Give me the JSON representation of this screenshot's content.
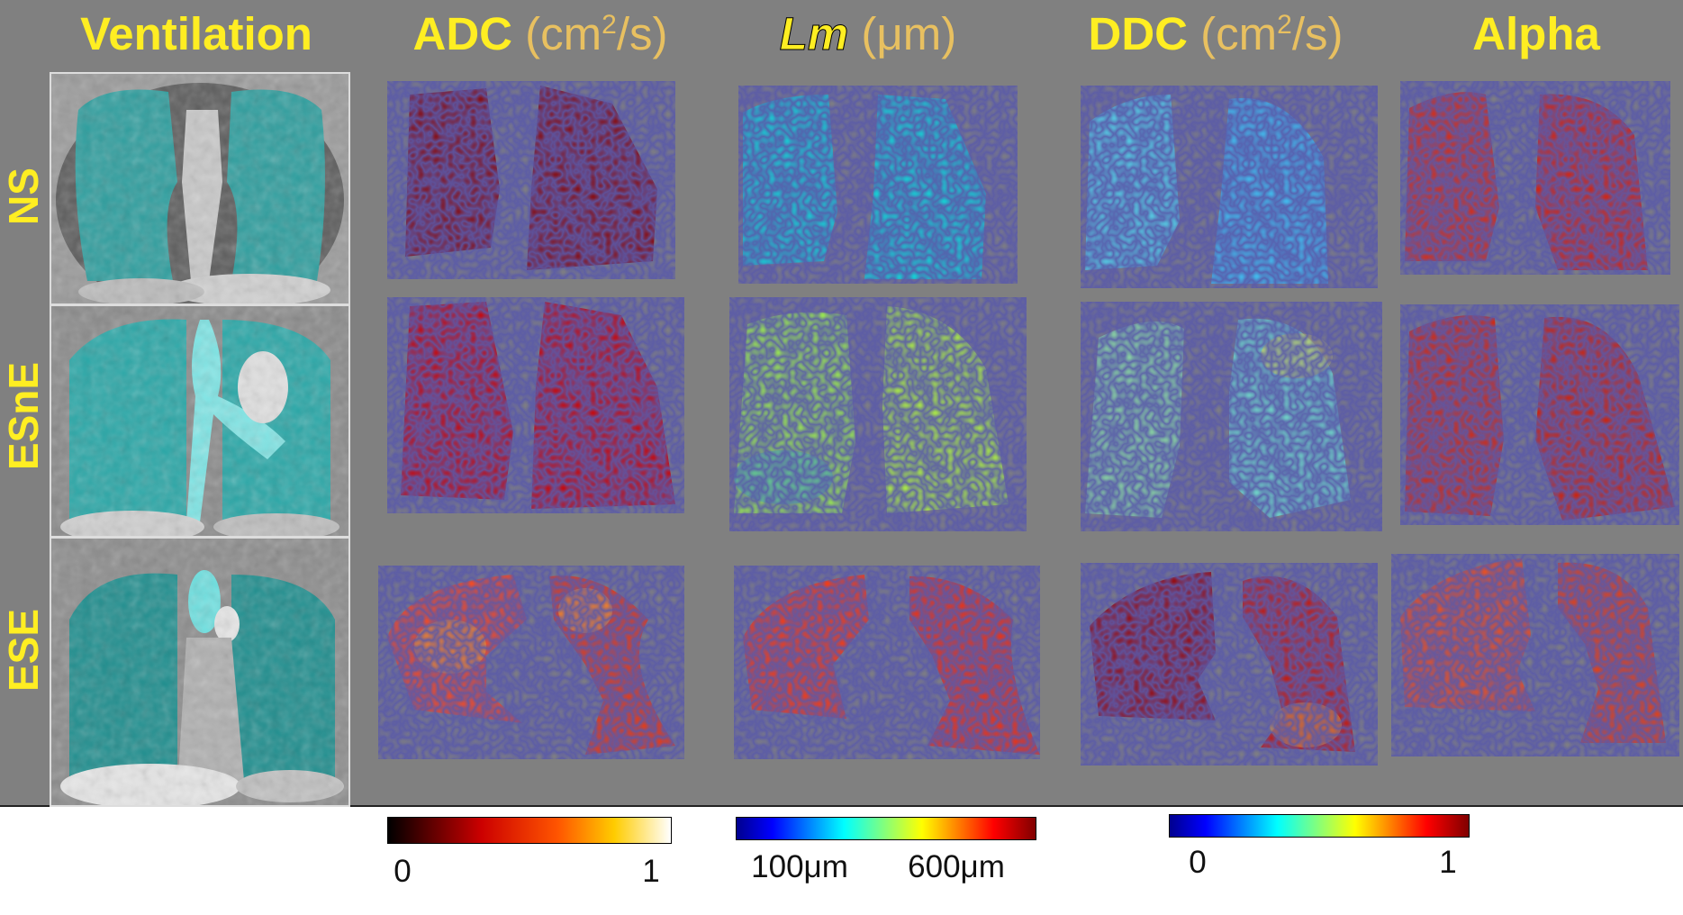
{
  "headers": {
    "ventilation": "Ventilation",
    "adc": "ADC",
    "adc_unit_base": "(cm",
    "adc_unit_exp": "2",
    "adc_unit_end": "/s)",
    "lm": "Lm",
    "lm_unit": "(μm)",
    "ddc": "DDC",
    "ddc_unit_base": "(cm",
    "ddc_unit_exp": "2",
    "ddc_unit_end": "/s)",
    "alpha": "Alpha"
  },
  "rows": [
    "NS",
    "ESnE",
    "ESE"
  ],
  "colorbars": {
    "adc": {
      "min_label": "0",
      "max_label": "1",
      "colormap": "hot"
    },
    "lm": {
      "min_label": "100μm",
      "max_label": "600μm",
      "colormap": "jet"
    },
    "ddc_alpha": {
      "min_label": "0",
      "max_label": "1",
      "colormap": "jet"
    }
  },
  "colors": {
    "panel_background": "#808080",
    "label_yellow": "#ffee22",
    "ventilation_overlay": "#29c7c7"
  }
}
